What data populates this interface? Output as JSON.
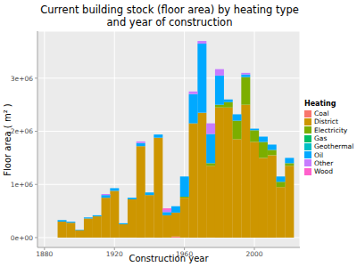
{
  "chart_data": {
    "type": "histogram",
    "title": "Current building stock (floor area) by heating type\nand year of construction",
    "x_label": "Construction year",
    "y_label": "Floor area ( m² )",
    "legend_title": "Heating",
    "legend": "right",
    "stacked": true,
    "grid": true,
    "bins": [
      1887.5,
      1892.5,
      1897.5,
      1902.5,
      1907.5,
      1912.5,
      1917.5,
      1922.5,
      1927.5,
      1932.5,
      1937.5,
      1942.5,
      1947.5,
      1952.5,
      1957.5,
      1962.5,
      1967.5,
      1972.5,
      1977.5,
      1982.5,
      1987.5,
      1992.5,
      1997.5,
      2002.5,
      2007.5,
      2012.5,
      2017.5,
      2022.5
    ],
    "xlim": [
      1876,
      2026
    ],
    "xticks": [
      1880,
      1920,
      1960,
      2000
    ],
    "ylim": [
      -185000,
      3885000
    ],
    "yticks": [
      {
        "value": 0,
        "label": "0e+00"
      },
      {
        "value": 1000000,
        "label": "1e+06"
      },
      {
        "value": 2000000,
        "label": "2e+06"
      },
      {
        "value": 3000000,
        "label": "3e+06"
      }
    ],
    "series": [
      {
        "name": "Coal",
        "color": "#F8766D",
        "values": [
          0,
          0,
          0,
          0,
          0,
          0,
          0,
          0,
          0,
          0,
          0,
          0,
          0,
          20000,
          0,
          0,
          0,
          0,
          0,
          0,
          0,
          0,
          0,
          0,
          0,
          0,
          0
        ]
      },
      {
        "name": "District",
        "color": "#CD9600",
        "values": [
          300000,
          280000,
          140000,
          360000,
          400000,
          750000,
          880000,
          250000,
          720000,
          1720000,
          800000,
          1880000,
          420000,
          450000,
          750000,
          2150000,
          2350000,
          1350000,
          2450000,
          2450000,
          1850000,
          2500000,
          1800000,
          1500000,
          1550000,
          950000,
          1350000
        ]
      },
      {
        "name": "Electricity",
        "color": "#7CAE00",
        "values": [
          0,
          0,
          0,
          0,
          0,
          0,
          0,
          0,
          0,
          0,
          0,
          0,
          0,
          0,
          20000,
          0,
          0,
          50000,
          50000,
          100000,
          350000,
          520000,
          220000,
          300000,
          100000,
          100000,
          50000
        ]
      },
      {
        "name": "Gas",
        "color": "#00BE67",
        "values": [
          0,
          0,
          0,
          0,
          0,
          0,
          0,
          0,
          0,
          0,
          0,
          0,
          0,
          0,
          0,
          0,
          0,
          0,
          0,
          0,
          0,
          0,
          0,
          0,
          0,
          0,
          0
        ]
      },
      {
        "name": "Geothermal",
        "color": "#00BFC4",
        "values": [
          0,
          0,
          0,
          0,
          0,
          0,
          0,
          0,
          0,
          0,
          0,
          0,
          0,
          0,
          0,
          0,
          0,
          0,
          0,
          0,
          0,
          0,
          0,
          0,
          0,
          0,
          0
        ]
      },
      {
        "name": "Oil",
        "color": "#00A9FF",
        "values": [
          30000,
          20000,
          10000,
          20000,
          20000,
          50000,
          50000,
          20000,
          30000,
          60000,
          50000,
          60000,
          60000,
          120000,
          380000,
          550000,
          1300000,
          550000,
          550000,
          50000,
          120000,
          50000,
          30000,
          100000,
          100000,
          100000,
          100000
        ]
      },
      {
        "name": "Other",
        "color": "#C77CFF",
        "values": [
          0,
          0,
          0,
          0,
          0,
          20000,
          0,
          0,
          0,
          30000,
          0,
          0,
          40000,
          0,
          0,
          50000,
          50000,
          200000,
          120000,
          0,
          0,
          30000,
          0,
          0,
          0,
          0,
          0
        ]
      },
      {
        "name": "Wood",
        "color": "#FF61CC",
        "values": [
          0,
          0,
          0,
          0,
          0,
          0,
          0,
          0,
          0,
          0,
          0,
          0,
          30000,
          0,
          0,
          0,
          0,
          0,
          0,
          0,
          0,
          0,
          0,
          0,
          0,
          0,
          0
        ]
      }
    ]
  }
}
